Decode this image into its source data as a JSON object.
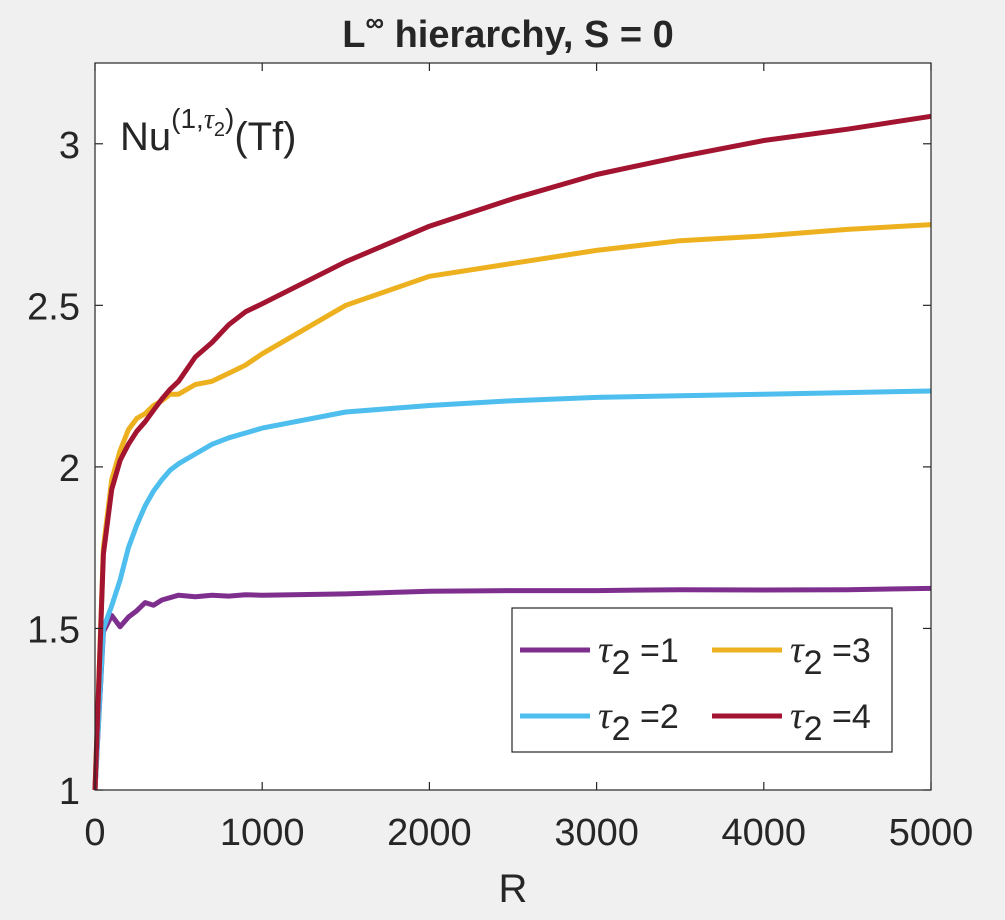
{
  "chart_data": {
    "type": "line",
    "title": "L∞ hierarchy, S = 0",
    "title_main": "L",
    "title_sup": "∞",
    "title_rest": " hierarchy, S = 0",
    "xlabel": "R",
    "ylabel": "",
    "annotation": {
      "base": "Nu",
      "sup_open": "(1,",
      "sup_tau": "τ",
      "sup_sub": "2",
      "sup_close": ")",
      "suffix": "(Tf)"
    },
    "xlim": [
      0,
      5000
    ],
    "ylim": [
      1,
      3.25
    ],
    "xticks": [
      0,
      1000,
      2000,
      3000,
      4000,
      5000
    ],
    "xtick_labels": [
      "0",
      "1000",
      "2000",
      "3000",
      "4000",
      "5000"
    ],
    "yticks": [
      1,
      1.5,
      2,
      2.5,
      3
    ],
    "ytick_labels": [
      "1",
      "1.5",
      "2",
      "2.5",
      "3"
    ],
    "grid": false,
    "legend_position": "bottom-right",
    "legend_columns": 2,
    "series": [
      {
        "name": "τ2 =1",
        "legend_tau": "τ",
        "legend_sub": "2",
        "legend_rest": " =1",
        "color": "#7e2f8e",
        "x": [
          0,
          50,
          100,
          150,
          200,
          250,
          300,
          350,
          400,
          500,
          600,
          700,
          800,
          900,
          1000,
          1500,
          2000,
          2500,
          3000,
          3500,
          4000,
          4500,
          5000
        ],
        "y": [
          1.0,
          1.49,
          1.54,
          1.505,
          1.535,
          1.555,
          1.58,
          1.572,
          1.588,
          1.603,
          1.598,
          1.603,
          1.6,
          1.604,
          1.603,
          1.607,
          1.615,
          1.617,
          1.617,
          1.62,
          1.619,
          1.62,
          1.624
        ]
      },
      {
        "name": "τ2 =2",
        "legend_tau": "τ",
        "legend_sub": "2",
        "legend_rest": " =2",
        "color": "#4dbeee",
        "x": [
          0,
          50,
          100,
          150,
          200,
          250,
          300,
          350,
          400,
          450,
          500,
          600,
          700,
          800,
          900,
          1000,
          1500,
          2000,
          2500,
          3000,
          3500,
          4000,
          4500,
          5000
        ],
        "y": [
          1.0,
          1.5,
          1.57,
          1.65,
          1.75,
          1.82,
          1.88,
          1.925,
          1.96,
          1.99,
          2.01,
          2.04,
          2.07,
          2.09,
          2.105,
          2.12,
          2.17,
          2.19,
          2.205,
          2.215,
          2.22,
          2.225,
          2.23,
          2.235
        ]
      },
      {
        "name": "τ2 =3",
        "legend_tau": "τ",
        "legend_sub": "2",
        "legend_rest": " =3",
        "color": "#edb120",
        "x": [
          0,
          50,
          100,
          150,
          200,
          250,
          300,
          350,
          400,
          450,
          500,
          600,
          700,
          800,
          900,
          1000,
          1500,
          2000,
          2500,
          3000,
          3500,
          4000,
          4500,
          5000
        ],
        "y": [
          1.0,
          1.75,
          1.96,
          2.05,
          2.115,
          2.15,
          2.165,
          2.19,
          2.205,
          2.225,
          2.225,
          2.255,
          2.265,
          2.29,
          2.315,
          2.35,
          2.5,
          2.59,
          2.63,
          2.67,
          2.7,
          2.715,
          2.735,
          2.75
        ]
      },
      {
        "name": "τ2 =4",
        "legend_tau": "τ",
        "legend_sub": "2",
        "legend_rest": " =4",
        "color": "#a2142f",
        "x": [
          0,
          50,
          100,
          150,
          200,
          250,
          300,
          350,
          400,
          450,
          500,
          600,
          700,
          800,
          900,
          1000,
          1500,
          2000,
          2500,
          3000,
          3500,
          4000,
          4500,
          5000
        ],
        "y": [
          1.0,
          1.73,
          1.93,
          2.02,
          2.07,
          2.11,
          2.14,
          2.175,
          2.21,
          2.24,
          2.265,
          2.34,
          2.385,
          2.44,
          2.48,
          2.505,
          2.635,
          2.745,
          2.83,
          2.905,
          2.96,
          3.01,
          3.045,
          3.085
        ]
      }
    ]
  }
}
